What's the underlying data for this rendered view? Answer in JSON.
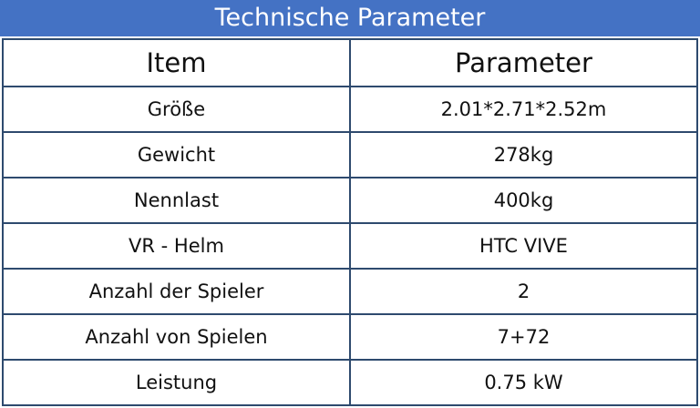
{
  "header": {
    "title": "Technische Parameter"
  },
  "table": {
    "columns": [
      "Item",
      "Parameter"
    ],
    "rows": [
      [
        "Größe",
        "2.01*2.71*2.52m"
      ],
      [
        "Gewicht",
        "278kg"
      ],
      [
        "Nennlast",
        "400kg"
      ],
      [
        "VR - Helm",
        "HTC VIVE"
      ],
      [
        "Anzahl der Spieler",
        "2"
      ],
      [
        "Anzahl von Spielen",
        "7+72"
      ],
      [
        "Leistung",
        "0.75 kW"
      ]
    ]
  }
}
